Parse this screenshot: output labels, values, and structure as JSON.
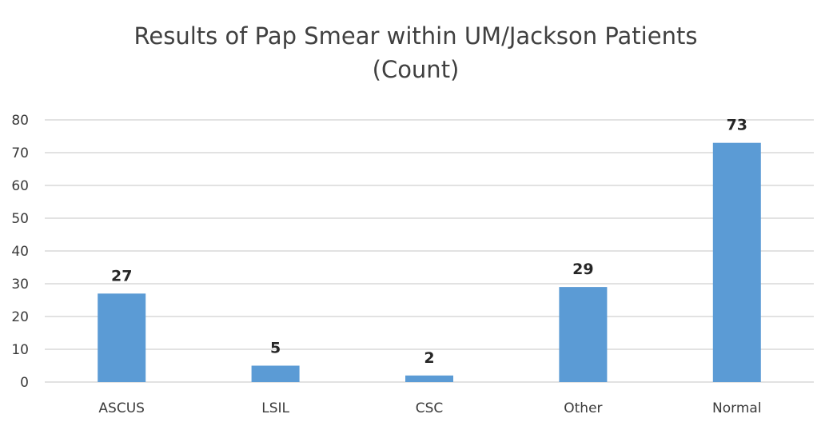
{
  "chart_data": {
    "type": "bar",
    "title_lines": [
      "Results of Pap Smear within UM/Jackson Patients",
      "(Count)"
    ],
    "categories": [
      "ASCUS",
      "LSIL",
      "CSC",
      "Other",
      "Normal"
    ],
    "values": [
      27,
      5,
      2,
      29,
      73
    ],
    "data_labels": [
      "27",
      "5",
      "2",
      "29",
      "73"
    ],
    "xlabel": "",
    "ylabel": "",
    "ylim": [
      0,
      80
    ],
    "yticks": [
      0,
      10,
      20,
      30,
      40,
      50,
      60,
      70,
      80
    ],
    "grid": true,
    "legend": "none",
    "bar_color": "#5b9bd5",
    "grid_color": "#d9d9d9"
  }
}
